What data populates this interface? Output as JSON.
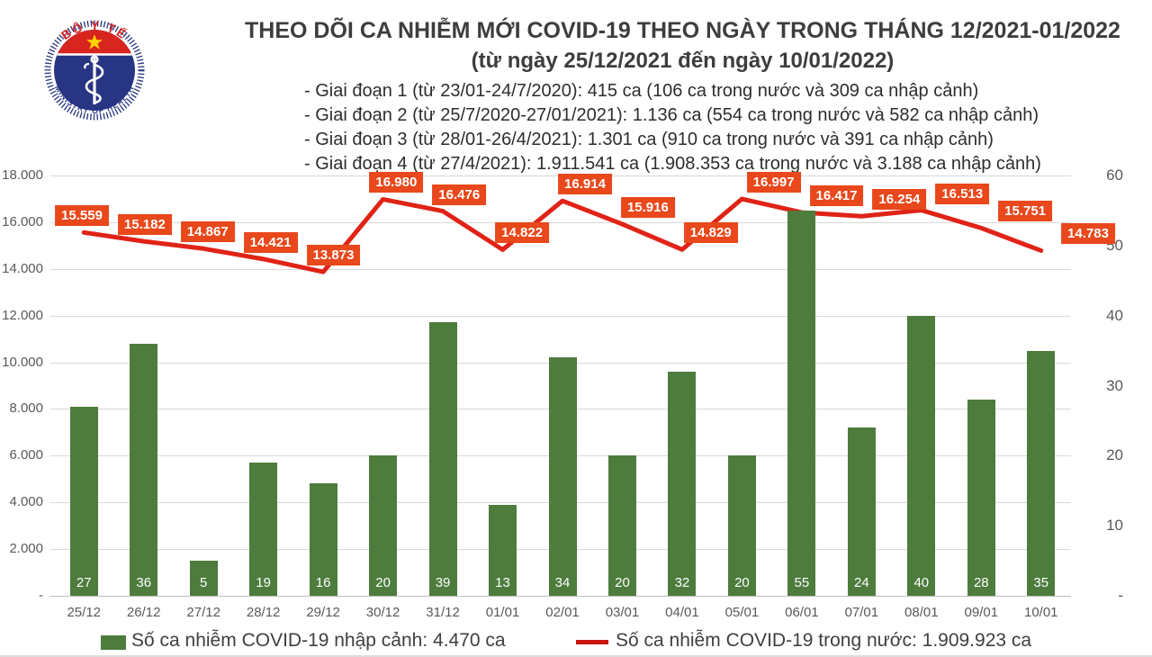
{
  "header": {
    "title": "THEO DÕI CA NHIỄM MỚI COVID-19 THEO NGÀY TRONG THÁNG 12/2021-01/2022",
    "subtitle": "(từ ngày 25/12/2021 đến ngày 10/01/2022)",
    "phases": [
      "- Giai đoạn 1 (từ 23/01-24/7/2020): 415 ca (106 ca trong nước và 309 ca nhập cảnh)",
      "- Giai đoạn 2 (từ 25/7/2020-27/01/2021): 1.136 ca (554 ca trong nước và 582 ca nhập cảnh)",
      "- Giai đoạn 3 (từ 28/01-26/4/2021): 1.301 ca (910 ca trong nước và 391 ca nhập cảnh)",
      "- Giai đoạn 4 (từ 27/4/2021): 1.911.541 ca (1.908.353 ca trong nước và 3.188 ca nhập cảnh)"
    ]
  },
  "logo": {
    "top_text": "BỘ Y TẾ",
    "bottom_text": "MINISTRY OF HEALTH"
  },
  "chart_data": {
    "type": "combo",
    "title": "THEO DÕI CA NHIỄM MỚI COVID-19 THEO NGÀY TRONG THÁNG 12/2021-01/2022 (từ ngày 25/12/2021 đến ngày 10/01/2022)",
    "categories": [
      "25/12",
      "26/12",
      "27/12",
      "28/12",
      "29/12",
      "30/12",
      "31/12",
      "01/01",
      "02/01",
      "03/01",
      "04/01",
      "05/01",
      "06/01",
      "07/01",
      "08/01",
      "09/01",
      "10/01"
    ],
    "series": [
      {
        "name": "Số ca nhiễm COVID-19 nhập cảnh",
        "type": "bar",
        "axis": "right",
        "values": [
          27,
          36,
          5,
          19,
          16,
          20,
          39,
          13,
          34,
          20,
          32,
          20,
          55,
          24,
          40,
          28,
          35
        ]
      },
      {
        "name": "Số ca nhiễm COVID-19 trong nước",
        "type": "line",
        "axis": "left",
        "values": [
          15559,
          15182,
          14867,
          14421,
          13873,
          16980,
          16476,
          14822,
          16914,
          15916,
          14829,
          16997,
          16417,
          16254,
          16513,
          15751,
          14783
        ],
        "labels": [
          "15.559",
          "15.182",
          "14.867",
          "14.421",
          "13.873",
          "16.980",
          "16.476",
          "14.822",
          "16.914",
          "15.916",
          "14.829",
          "16.997",
          "16.417",
          "16.254",
          "16.513",
          "15.751",
          "14.783"
        ]
      }
    ],
    "left_axis": {
      "min": 0,
      "max": 18000,
      "tick_labels": [
        "18.000",
        "16.000",
        "14.000",
        "12.000",
        "10.000",
        "8.000",
        "6.000",
        "4.000",
        "2.000",
        "-"
      ],
      "tick_values": [
        18000,
        16000,
        14000,
        12000,
        10000,
        8000,
        6000,
        4000,
        2000,
        0
      ]
    },
    "right_axis": {
      "min": 0,
      "max": 60,
      "tick_labels": [
        "60",
        "50",
        "40",
        "30",
        "20",
        "10",
        "-"
      ],
      "tick_values": [
        60,
        50,
        40,
        30,
        20,
        10,
        0
      ]
    },
    "grid": true,
    "legend_position": "bottom"
  },
  "legend": {
    "bars_label": "Số ca nhiễm COVID-19 nhập cảnh: 4.470 ca",
    "line_label": "Số ca nhiễm COVID-19 trong nước: 1.909.923 ca"
  },
  "colors": {
    "bar": "#4d7c3d",
    "line": "#e02317",
    "point_label_bg": "#e8481b",
    "legend_line": "#c81610",
    "grid": "#d9d9d9",
    "axis_line": "#bfbfbf",
    "axis_text": "#595959",
    "title_text": "#3d3d3d",
    "logo_red": "#d8251f",
    "logo_blue": "#283583",
    "logo_star": "#ffd200"
  }
}
